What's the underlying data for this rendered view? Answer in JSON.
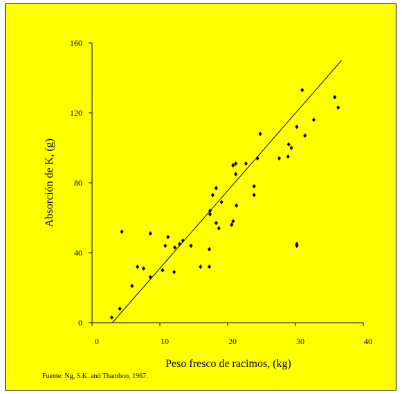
{
  "chart_data": {
    "type": "scatter",
    "title": "",
    "xlabel": "Peso fresco de racimos, (kg)",
    "ylabel": "Absorción de K, (g)",
    "xlim": [
      0,
      40
    ],
    "ylim": [
      0,
      160
    ],
    "x_ticks": [
      0,
      10,
      20,
      30,
      40
    ],
    "y_ticks": [
      0,
      40,
      80,
      120,
      160
    ],
    "grid": false,
    "legend": "none",
    "series": [
      {
        "marker": "diamond",
        "color": "#000000",
        "points": [
          [
            2.9,
            3
          ],
          [
            4.1,
            8
          ],
          [
            4.4,
            52
          ],
          [
            5.9,
            21
          ],
          [
            6.7,
            32
          ],
          [
            7.6,
            31
          ],
          [
            8.6,
            26
          ],
          [
            8.6,
            51
          ],
          [
            10.4,
            30
          ],
          [
            10.8,
            44
          ],
          [
            11.2,
            49
          ],
          [
            12.1,
            29
          ],
          [
            12.2,
            43
          ],
          [
            12.9,
            45
          ],
          [
            13.4,
            47
          ],
          [
            14.6,
            44
          ],
          [
            16.0,
            32
          ],
          [
            17.3,
            32
          ],
          [
            17.3,
            42
          ],
          [
            17.4,
            62
          ],
          [
            17.4,
            64
          ],
          [
            17.8,
            73
          ],
          [
            18.3,
            77
          ],
          [
            18.3,
            57
          ],
          [
            18.7,
            54
          ],
          [
            19.1,
            69
          ],
          [
            20.6,
            56
          ],
          [
            20.8,
            58
          ],
          [
            20.8,
            90
          ],
          [
            21.2,
            91
          ],
          [
            21.2,
            85
          ],
          [
            21.3,
            67
          ],
          [
            22.7,
            91
          ],
          [
            23.9,
            73
          ],
          [
            23.9,
            78
          ],
          [
            24.4,
            94
          ],
          [
            24.8,
            108
          ],
          [
            27.6,
            94
          ],
          [
            28.9,
            95
          ],
          [
            29.0,
            102
          ],
          [
            29.4,
            100
          ],
          [
            30.2,
            44
          ],
          [
            30.2,
            45
          ],
          [
            30.2,
            112
          ],
          [
            31.0,
            133
          ],
          [
            31.4,
            107
          ],
          [
            32.7,
            116
          ],
          [
            35.8,
            129
          ],
          [
            36.3,
            123
          ]
        ]
      }
    ],
    "trendline": {
      "type": "linear",
      "x": [
        3.0,
        36.8
      ],
      "y": [
        0,
        150
      ]
    },
    "source_note": "Fuente: Ng, S.K. and Thamboo, 1967."
  }
}
